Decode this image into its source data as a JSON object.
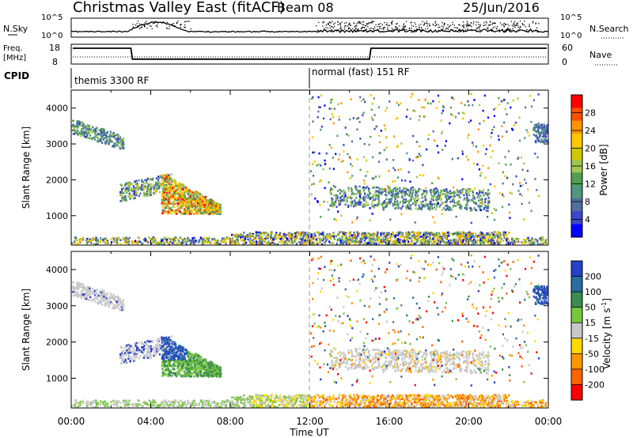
{
  "header": {
    "title": "Christmas Valley East (fitACF)",
    "beam": "Beam 08",
    "date": "25/Jun/2016"
  },
  "chart_data": [
    {
      "type": "line",
      "panel": "sky-noise",
      "left_label": "N.Sky",
      "right_label": "N.Search",
      "y_ticks_left": [
        "10^5",
        "10^0"
      ],
      "y_ticks_right": [
        "10^5",
        "10^0"
      ]
    },
    {
      "type": "line",
      "panel": "frequency",
      "left_label": "Freq.\n[MHz]",
      "right_label": "Nave",
      "y_ticks_left": [
        "18",
        "8"
      ],
      "y_ticks_right": [
        "60",
        "0"
      ],
      "freq_steps": [
        {
          "start_h": 0,
          "end_h": 3.0,
          "value": 16
        },
        {
          "start_h": 3.0,
          "end_h": 15.0,
          "value": 10.5
        },
        {
          "start_h": 15.0,
          "end_h": 24.0,
          "value": 16
        }
      ]
    },
    {
      "type": "table",
      "panel": "cpid",
      "label": "CPID",
      "segments": [
        {
          "start_h": 0,
          "text": "themis 3300 RF"
        },
        {
          "start_h": 12.0,
          "text": "normal (fast) 151 RF"
        }
      ]
    },
    {
      "type": "heatmap",
      "panel": "power",
      "ylabel": "Slant Range [km]",
      "xlabel": "Time UT",
      "ylim": [
        180,
        4500
      ],
      "xlim": [
        0,
        24
      ],
      "y_ticks": [
        1000,
        2000,
        3000,
        4000
      ],
      "colorbar_label": "Power [dB]",
      "colorbar_ticks": [
        "28",
        "24",
        "20",
        "16",
        "12",
        "8",
        "4"
      ],
      "colorbar_colors": [
        "#ff0000",
        "#ff5000",
        "#ff9600",
        "#ffc800",
        "#d2c800",
        "#a0c850",
        "#50a050",
        "#509680",
        "#506ea0",
        "#3c46c8",
        "#0000ff"
      ]
    },
    {
      "type": "heatmap",
      "panel": "velocity",
      "ylabel": "Slant Range [km]",
      "xlabel": "Time UT",
      "ylim": [
        180,
        4500
      ],
      "xlim": [
        0,
        24
      ],
      "y_ticks": [
        1000,
        2000,
        3000,
        4000
      ],
      "x_ticks": [
        "00:00",
        "04:00",
        "08:00",
        "12:00",
        "16:00",
        "20:00",
        "00:00"
      ],
      "colorbar_label": "Velocity [m s",
      "colorbar_unit_sup": "-1",
      "colorbar_label_end": "]",
      "colorbar_ticks": [
        "200",
        "100",
        "50",
        "15",
        "-15",
        "-50",
        "-100",
        "-200"
      ],
      "colorbar_colors": [
        "#2840c8",
        "#286ea0",
        "#3c8c50",
        "#78c83c",
        "#c8c8c8",
        "#ffd800",
        "#ff9600",
        "#ff6400",
        "#ff0000"
      ]
    }
  ]
}
